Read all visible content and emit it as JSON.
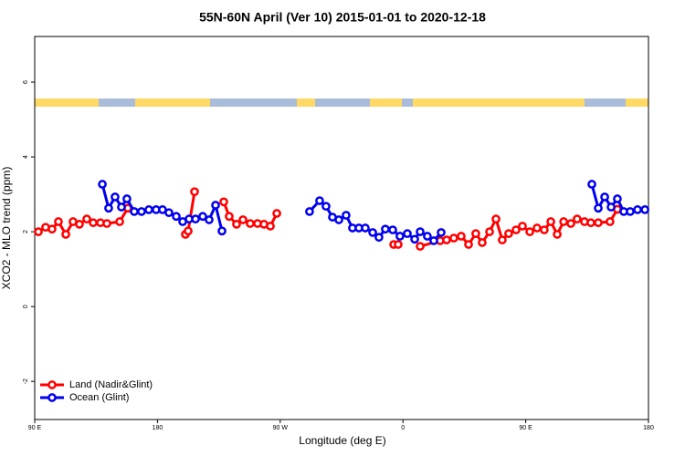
{
  "chart_data": {
    "type": "line",
    "title": "55N-60N April (Ver 10)   2015-01-01 to 2020-12-18",
    "xlabel": "Longitude (deg E)",
    "ylabel": "XCO2 - MLO trend (ppm)",
    "xlim": [
      90,
      540
    ],
    "ylim": [
      -3.02,
      7.22
    ],
    "xticks": [
      {
        "value": 90,
        "label": "90 E"
      },
      {
        "value": 180,
        "label": "180"
      },
      {
        "value": 270,
        "label": "90 W"
      },
      {
        "value": 360,
        "label": "0"
      },
      {
        "value": 450,
        "label": "90 E"
      },
      {
        "value": 540,
        "label": "180"
      }
    ],
    "yticks": [
      -2,
      0,
      2,
      4,
      6
    ],
    "legend": "bottom-left",
    "series": [
      {
        "name": "Land (Nadir&Glint)",
        "color": "#ff0000",
        "x": [
          92.7,
          98.0,
          102.7,
          107.4,
          112.8,
          118.1,
          122.8,
          128.2,
          132.9,
          138.2,
          142.9,
          152.3,
          158.3,
          null,
          200.5,
          202.5,
          207.2,
          null,
          228.6,
          232.6,
          238.0,
          242.7,
          248.0,
          253.4,
          258.1,
          262.8,
          267.5,
          null,
          353.2,
          356.5,
          null,
          372.6,
          387.3,
          392.0,
          397.3,
          402.7,
          408.1,
          413.4,
          418.1,
          423.5,
          428.2,
          432.8,
          437.5,
          442.9,
          447.6,
          453.0,
          458.3,
          463.6,
          468.4,
          473.1,
          477.8,
          483.1,
          487.7,
          493.1,
          497.8,
          503.2,
          511.8,
          517.2
        ],
        "values": [
          2.0,
          2.12,
          2.07,
          2.27,
          1.93,
          2.27,
          2.2,
          2.34,
          2.24,
          2.24,
          2.22,
          2.27,
          2.63,
          null,
          1.93,
          2.02,
          3.07,
          null,
          2.8,
          2.41,
          2.2,
          2.32,
          2.22,
          2.22,
          2.2,
          2.15,
          2.49,
          null,
          1.66,
          1.66,
          null,
          1.61,
          1.76,
          1.78,
          1.83,
          1.88,
          1.66,
          1.95,
          1.71,
          2.0,
          2.34,
          1.78,
          1.95,
          2.05,
          2.15,
          2.0,
          2.1,
          2.05,
          2.27,
          1.93,
          2.27,
          2.22,
          2.34,
          2.27,
          2.24,
          2.24,
          2.27,
          2.6
        ]
      },
      {
        "name": "Ocean (Glint)",
        "color": "#0000ee",
        "x": [
          139.6,
          144.2,
          148.9,
          153.6,
          157.6,
          163.0,
          168.3,
          173.7,
          179.0,
          183.7,
          188.4,
          193.8,
          198.5,
          203.2,
          207.9,
          213.2,
          217.9,
          222.6,
          227.3,
          null,
          291.5,
          298.9,
          303.6,
          308.3,
          313.0,
          318.3,
          323.0,
          327.7,
          332.4,
          337.8,
          342.4,
          347.1,
          352.5,
          357.8,
          363.2,
          368.6,
          372.6,
          377.9,
          382.6,
          388.0,
          null,
          498.5,
          503.2,
          507.9,
          512.6,
          517.2,
          521.9,
          526.6,
          532.0,
          537.4
        ],
        "values": [
          3.27,
          2.63,
          2.93,
          2.66,
          2.88,
          2.54,
          2.54,
          2.59,
          2.59,
          2.59,
          2.51,
          2.41,
          2.27,
          2.34,
          2.34,
          2.41,
          2.32,
          2.71,
          2.02,
          null,
          2.54,
          2.83,
          2.68,
          2.39,
          2.32,
          2.44,
          2.1,
          2.1,
          2.1,
          1.98,
          1.85,
          2.07,
          2.05,
          1.88,
          1.95,
          1.8,
          2.0,
          1.88,
          1.76,
          1.98,
          null,
          3.27,
          2.63,
          2.93,
          2.66,
          2.88,
          2.54,
          2.54,
          2.59,
          2.59
        ]
      }
    ]
  }
}
